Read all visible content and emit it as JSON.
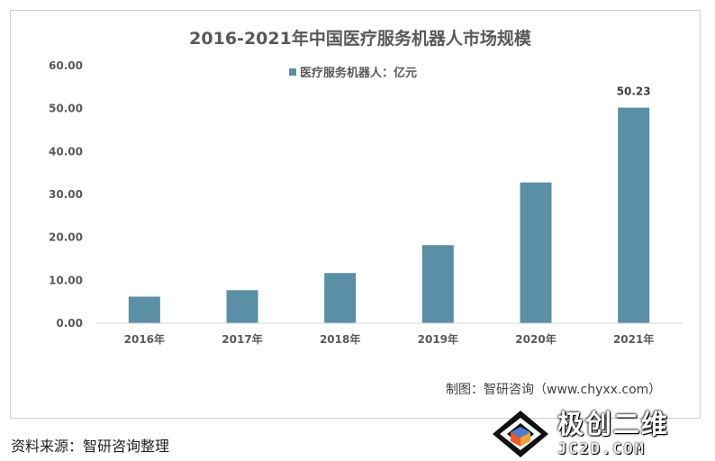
{
  "chart_data": {
    "type": "bar",
    "title": "2016-2021年中国医疗服务机器人市场规模",
    "categories": [
      "2016年",
      "2017年",
      "2018年",
      "2019年",
      "2020年",
      "2021年"
    ],
    "series": [
      {
        "name": "医疗服务机器人：亿元",
        "values": [
          6.2,
          7.7,
          11.7,
          18.2,
          32.8,
          50.23
        ],
        "color": "#5b8fa6"
      }
    ],
    "data_labels": {
      "2021年": "50.23"
    },
    "yticks": [
      "0.00",
      "10.00",
      "20.00",
      "30.00",
      "40.00",
      "50.00",
      "60.00"
    ],
    "ylim": [
      0,
      60
    ],
    "grid": false,
    "legend_position": "top-center"
  },
  "credit": "制图：智研咨询（www.chyxx.com）",
  "source_note": "资料来源：智研咨询整理",
  "watermark": {
    "cn": "极创二维",
    "en": "JC2D.COM"
  },
  "colors": {
    "bar": "#5b8fa6",
    "axis": "#d9d9d9",
    "text": "#595959"
  }
}
